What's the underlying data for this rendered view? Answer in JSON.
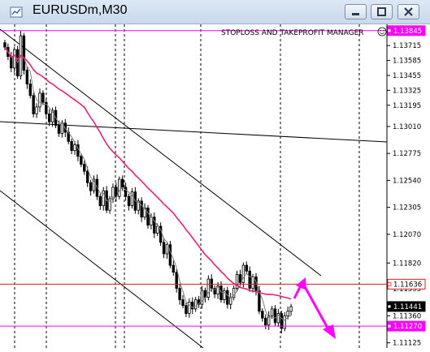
{
  "window": {
    "title": "EURUSDm,M30",
    "buttons": [
      "minimize",
      "restore",
      "close"
    ]
  },
  "indicator": {
    "label": "STOPLOSS AND TAKEPROFIT MANAGER",
    "icon": "smiley-icon"
  },
  "colors": {
    "candles": "#000000",
    "ma_slow": "#e8207a",
    "ma_fast": "#7f7f7f",
    "level_lines": "#ff00ff",
    "price_line": "#d22020",
    "arrow": "#ff00ff"
  },
  "chart_data": {
    "type": "candlestick",
    "symbol": "EURUSDm",
    "timeframe": "M30",
    "price_axis": {
      "ticks": [
        "1.13715",
        "1.13585",
        "1.13455",
        "1.13325",
        "1.13195",
        "1.13010",
        "1.12775",
        "1.12540",
        "1.12305",
        "1.12070",
        "1.11820",
        "1.11595",
        "1.11360",
        "1.11125"
      ]
    },
    "ylim": [
      1.1108,
      1.139
    ],
    "price_labels": [
      {
        "value": "1.13845",
        "color": "#ff00ff"
      },
      {
        "value": "1.11636",
        "color": "#d22020"
      },
      {
        "value": "1.11441",
        "color": "#000000"
      },
      {
        "value": "1.11270",
        "color": "#ff00ff"
      }
    ],
    "horizontal_levels": [
      1.13845,
      1.11636,
      1.1127
    ],
    "close_series": [
      1.137,
      1.1362,
      1.1352,
      1.1368,
      1.1345,
      1.138,
      1.135,
      1.1338,
      1.1328,
      1.1312,
      1.1318,
      1.133,
      1.1322,
      1.1312,
      1.1305,
      1.1315,
      1.1302,
      1.1295,
      1.1304,
      1.1296,
      1.1288,
      1.128,
      1.1285,
      1.1275,
      1.1268,
      1.1262,
      1.1252,
      1.1245,
      1.1255,
      1.124,
      1.1232,
      1.1245,
      1.1228,
      1.1238,
      1.1248,
      1.124,
      1.1255,
      1.1248,
      1.124,
      1.1232,
      1.1244,
      1.1228,
      1.1236,
      1.1222,
      1.123,
      1.1215,
      1.1222,
      1.1208,
      1.1214,
      1.12,
      1.119,
      1.1198,
      1.118,
      1.1174,
      1.116,
      1.115,
      1.1145,
      1.1138,
      1.1148,
      1.1142,
      1.115,
      1.1146,
      1.1158,
      1.1152,
      1.1168,
      1.116,
      1.1155,
      1.1162,
      1.115,
      1.1158,
      1.1146,
      1.1152,
      1.116,
      1.1172,
      1.1165,
      1.118,
      1.1175,
      1.116,
      1.117,
      1.1158,
      1.114,
      1.1134,
      1.1128,
      1.1136,
      1.1142,
      1.113,
      1.1138,
      1.1125,
      1.1136,
      1.114,
      1.1144
    ]
  }
}
